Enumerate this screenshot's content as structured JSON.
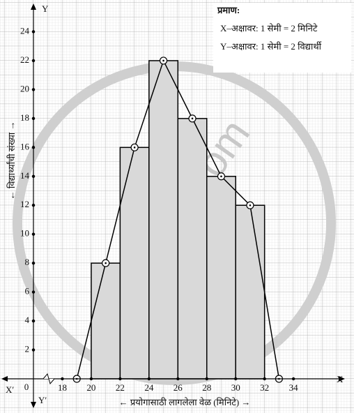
{
  "chart_data": {
    "type": "histogram",
    "bins": [
      20,
      22,
      24,
      26,
      28,
      30,
      32
    ],
    "values": [
      8,
      16,
      22,
      18,
      14,
      12
    ],
    "color": "#d9d9d9",
    "polygon": {
      "x": [
        19,
        21,
        23,
        25,
        27,
        29,
        31,
        33
      ],
      "values": [
        0,
        8,
        16,
        22,
        18,
        14,
        12,
        0
      ]
    },
    "xlim": [
      16,
      37
    ],
    "ylim": [
      0,
      25
    ],
    "xticks": [
      18,
      20,
      22,
      24,
      26,
      28,
      30,
      32,
      34
    ],
    "yticks": [
      2,
      4,
      6,
      8,
      10,
      12,
      14,
      16,
      18,
      20,
      22,
      24
    ],
    "origin": "0",
    "x_axis_label": "← प्रयोगासाठी लागलेला वेळ (मिनिटे) →",
    "y_axis_label": "← विद्यार्थ्यांची संख्या →",
    "axis_names": {
      "x": "X",
      "x_neg": "X′",
      "y": "Y",
      "y_neg": "Y′"
    },
    "scale": {
      "title": "प्रमाण:",
      "x": "X–अक्षावर: 1 सेमी = 2 मिनिटे",
      "y": "Y–अक्षावर: 1 सेमी = 2 विद्यार्थी"
    },
    "watermark": "shaalaa.com"
  }
}
